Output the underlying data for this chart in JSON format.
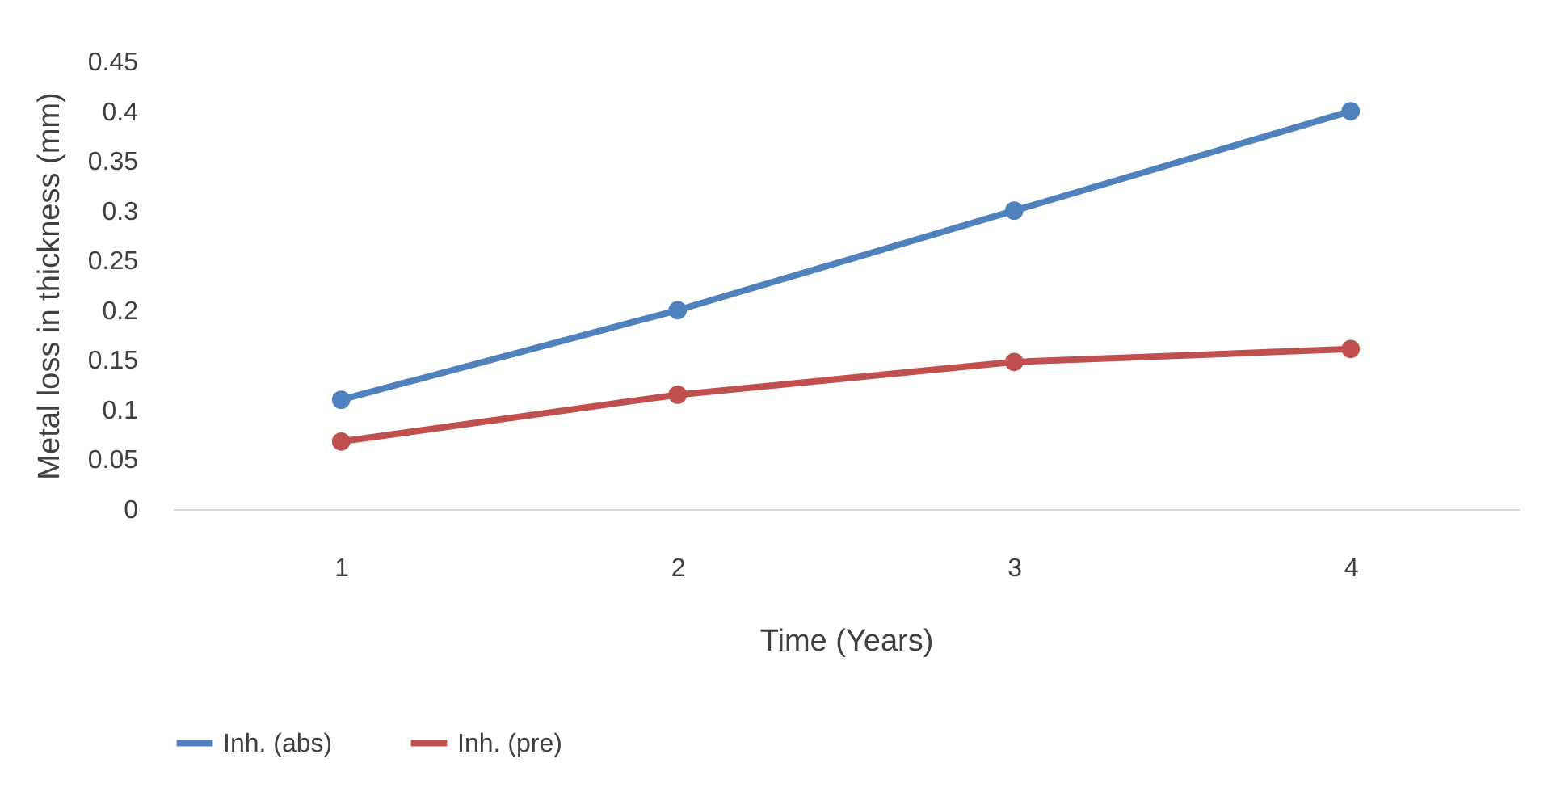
{
  "chart_data": {
    "type": "line",
    "xlabel": "Time (Years)",
    "ylabel": "Metal loss in thickness (mm)",
    "categories": [
      "1",
      "2",
      "3",
      "4"
    ],
    "series": [
      {
        "name": "Inh. (abs)",
        "color": "#4f81bd",
        "values": [
          0.11,
          0.2,
          0.3,
          0.4
        ]
      },
      {
        "name": "Inh. (pre)",
        "color": "#c0504d",
        "values": [
          0.068,
          0.115,
          0.148,
          0.161
        ]
      }
    ],
    "ylim": [
      0,
      0.45
    ],
    "yticks": [
      0,
      0.05,
      0.1,
      0.15,
      0.2,
      0.25,
      0.3,
      0.35,
      0.4,
      0.45
    ],
    "grid": false,
    "legend": "bottom",
    "marker": "circle",
    "line_style": "solid"
  }
}
